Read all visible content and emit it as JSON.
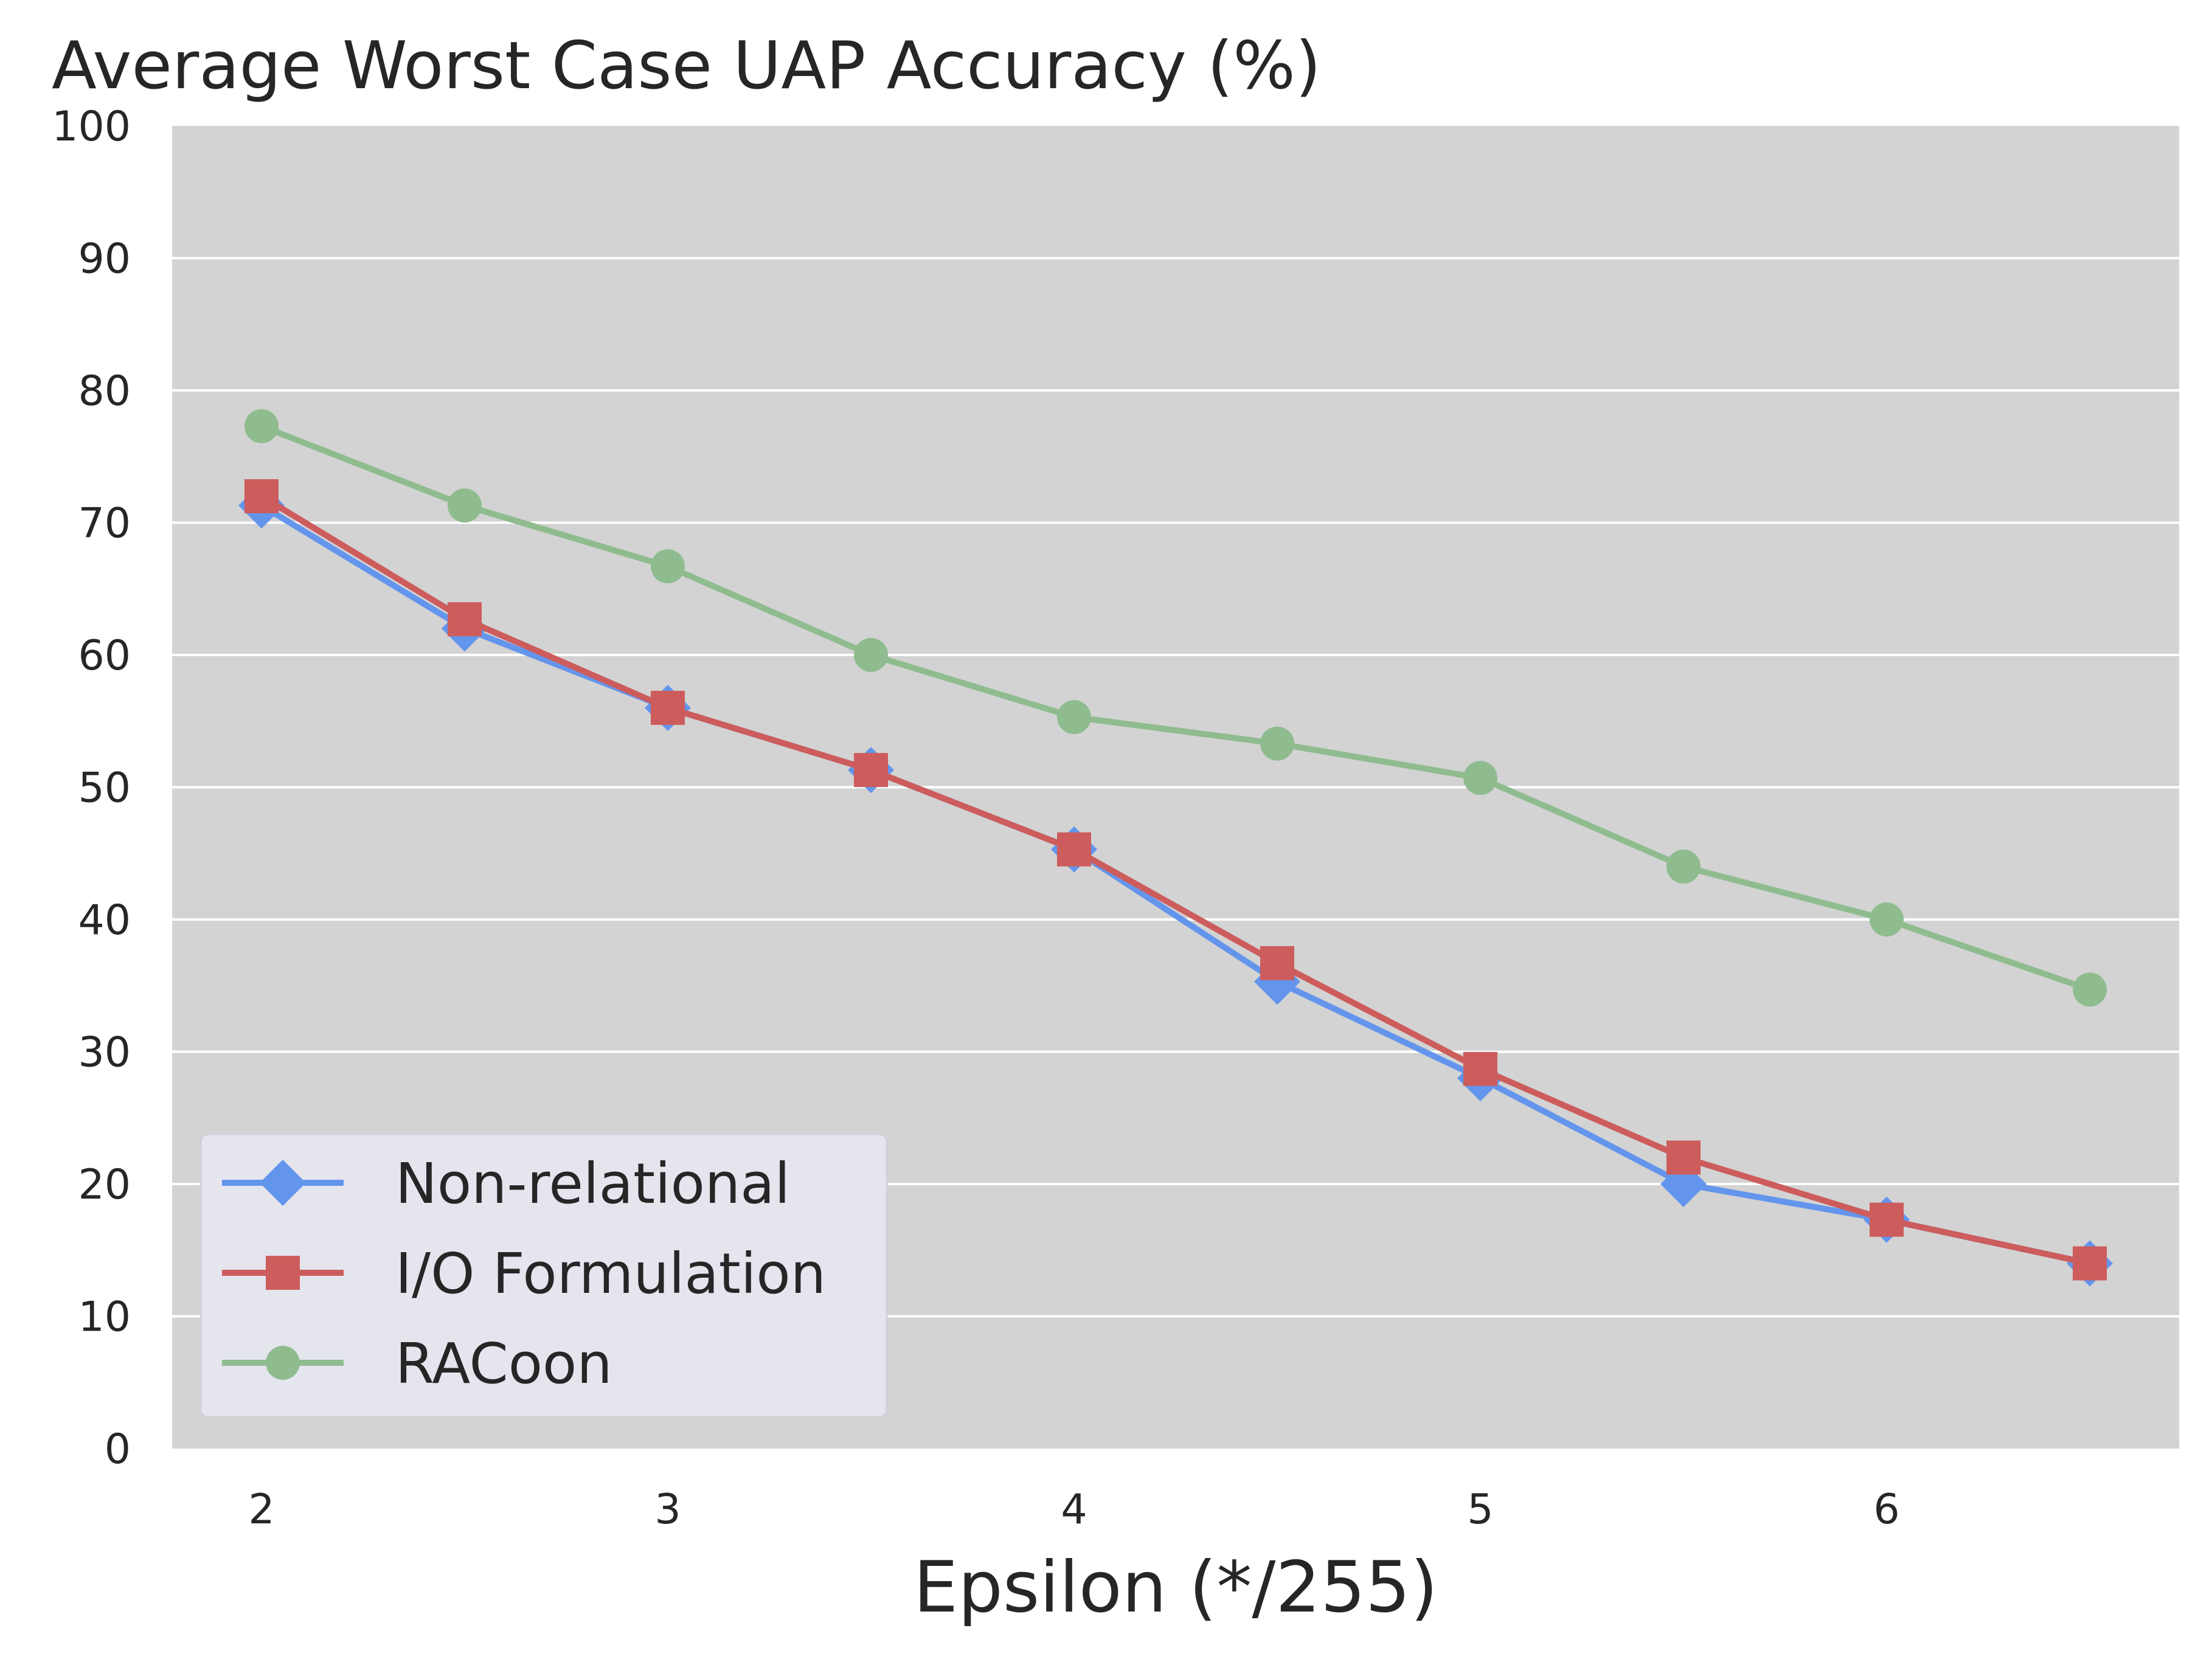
{
  "chart_data": {
    "type": "line",
    "title": "Average Worst Case UAP Accuracy (%)",
    "xlabel": "Epsilon (*/255)",
    "ylabel": "",
    "x": [
      2,
      2.5,
      3,
      3.5,
      4,
      4.5,
      5,
      5.5,
      6,
      6.5
    ],
    "xlim": [
      1.78,
      6.72
    ],
    "ylim": [
      0,
      100
    ],
    "xticks": [
      2,
      3,
      4,
      5,
      6
    ],
    "yticks": [
      0,
      10,
      20,
      30,
      40,
      50,
      60,
      70,
      80,
      90,
      100
    ],
    "grid": true,
    "legend_position": "lower-left",
    "series": [
      {
        "name": "Non-relational",
        "color": "#6495ED",
        "marker": "diamond",
        "values": [
          71.3,
          62.0,
          56.0,
          51.3,
          45.3,
          35.3,
          28.0,
          20.0,
          17.3,
          14.0
        ]
      },
      {
        "name": "I/O Formulation",
        "color": "#CD5C5C",
        "marker": "square",
        "values": [
          72.0,
          62.7,
          56.0,
          51.3,
          45.3,
          36.7,
          28.7,
          22.0,
          17.3,
          14.0
        ]
      },
      {
        "name": "RACoon",
        "color": "#8FBC8F",
        "marker": "circle",
        "values": [
          77.3,
          71.3,
          66.7,
          60.0,
          55.3,
          53.3,
          50.7,
          44.0,
          40.0,
          34.7
        ]
      }
    ]
  }
}
